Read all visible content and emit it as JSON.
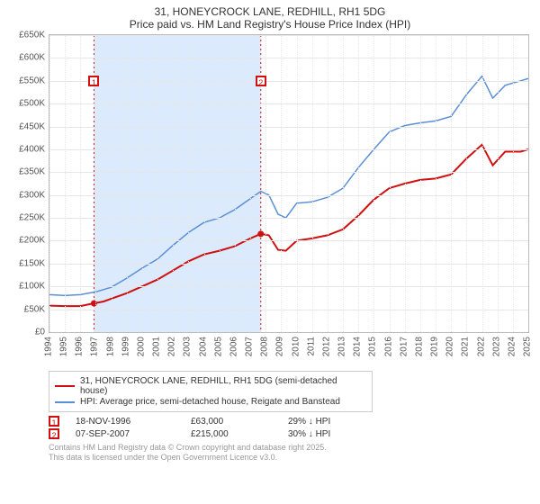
{
  "title_line1": "31, HONEYCROCK LANE, REDHILL, RH1 5DG",
  "title_line2": "Price paid vs. HM Land Registry's House Price Index (HPI)",
  "chart": {
    "type": "line",
    "background_color": "#ffffff",
    "grid_color": "#e6e6e6",
    "axis_color": "#bbbbbb",
    "shade_color": "#dbeafc",
    "x": {
      "years": [
        1994,
        1995,
        1996,
        1997,
        1998,
        1999,
        2000,
        2001,
        2002,
        2003,
        2004,
        2005,
        2006,
        2007,
        2008,
        2009,
        2010,
        2011,
        2012,
        2013,
        2014,
        2015,
        2016,
        2017,
        2018,
        2019,
        2020,
        2021,
        2022,
        2023,
        2024,
        2025
      ],
      "min": 1994,
      "max": 2025,
      "tick_fontsize": 10,
      "rotation": -90
    },
    "y": {
      "ticks": [
        0,
        50000,
        100000,
        150000,
        200000,
        250000,
        300000,
        350000,
        400000,
        450000,
        500000,
        550000,
        600000,
        650000
      ],
      "labels": [
        "£0",
        "£50K",
        "£100K",
        "£150K",
        "£200K",
        "£250K",
        "£300K",
        "£350K",
        "£400K",
        "£450K",
        "£500K",
        "£550K",
        "£600K",
        "£650K"
      ],
      "min": 0,
      "max": 650000,
      "tick_fontsize": 10
    },
    "series": [
      {
        "name": "price_paid",
        "legend": "31, HONEYCROCK LANE, REDHILL, RH1 5DG (semi-detached house)",
        "color": "#d01010",
        "line_width": 2,
        "points": [
          [
            1994.0,
            58000
          ],
          [
            1995.0,
            57000
          ],
          [
            1996.0,
            57000
          ],
          [
            1996.88,
            63000
          ],
          [
            1997.5,
            67000
          ],
          [
            1998.0,
            73000
          ],
          [
            1999.0,
            85000
          ],
          [
            2000.0,
            100000
          ],
          [
            2001.0,
            115000
          ],
          [
            2002.0,
            135000
          ],
          [
            2003.0,
            155000
          ],
          [
            2004.0,
            170000
          ],
          [
            2005.0,
            178000
          ],
          [
            2006.0,
            188000
          ],
          [
            2007.0,
            205000
          ],
          [
            2007.68,
            215000
          ],
          [
            2008.2,
            212000
          ],
          [
            2008.8,
            180000
          ],
          [
            2009.3,
            178000
          ],
          [
            2010.0,
            200000
          ],
          [
            2011.0,
            205000
          ],
          [
            2012.0,
            212000
          ],
          [
            2013.0,
            225000
          ],
          [
            2014.0,
            255000
          ],
          [
            2015.0,
            290000
          ],
          [
            2016.0,
            315000
          ],
          [
            2017.0,
            325000
          ],
          [
            2018.0,
            333000
          ],
          [
            2019.0,
            336000
          ],
          [
            2020.0,
            345000
          ],
          [
            2021.0,
            380000
          ],
          [
            2022.0,
            410000
          ],
          [
            2022.7,
            365000
          ],
          [
            2023.5,
            395000
          ],
          [
            2024.5,
            395000
          ],
          [
            2025.0,
            400000
          ]
        ]
      },
      {
        "name": "hpi",
        "legend": "HPI: Average price, semi-detached house, Reigate and Banstead",
        "color": "#5a8fd6",
        "line_width": 1.5,
        "points": [
          [
            1994.0,
            82000
          ],
          [
            1995.0,
            80000
          ],
          [
            1996.0,
            82000
          ],
          [
            1997.0,
            88000
          ],
          [
            1998.0,
            98000
          ],
          [
            1999.0,
            118000
          ],
          [
            2000.0,
            140000
          ],
          [
            2001.0,
            160000
          ],
          [
            2002.0,
            190000
          ],
          [
            2003.0,
            218000
          ],
          [
            2004.0,
            240000
          ],
          [
            2005.0,
            250000
          ],
          [
            2006.0,
            268000
          ],
          [
            2007.0,
            292000
          ],
          [
            2007.68,
            308000
          ],
          [
            2008.2,
            300000
          ],
          [
            2008.8,
            258000
          ],
          [
            2009.3,
            250000
          ],
          [
            2010.0,
            282000
          ],
          [
            2011.0,
            285000
          ],
          [
            2012.0,
            295000
          ],
          [
            2013.0,
            315000
          ],
          [
            2014.0,
            360000
          ],
          [
            2015.0,
            400000
          ],
          [
            2016.0,
            438000
          ],
          [
            2017.0,
            452000
          ],
          [
            2018.0,
            458000
          ],
          [
            2019.0,
            462000
          ],
          [
            2020.0,
            472000
          ],
          [
            2021.0,
            520000
          ],
          [
            2022.0,
            560000
          ],
          [
            2022.7,
            512000
          ],
          [
            2023.5,
            540000
          ],
          [
            2024.5,
            550000
          ],
          [
            2025.0,
            555000
          ]
        ]
      }
    ],
    "markers": [
      {
        "id": "1",
        "x": 1996.88,
        "y": 63000,
        "label_y": 550000
      },
      {
        "id": "2",
        "x": 2007.68,
        "y": 215000,
        "label_y": 550000
      }
    ],
    "shade_range": [
      1996.88,
      2007.68
    ]
  },
  "legend": {
    "row1_label": "31, HONEYCROCK LANE, REDHILL, RH1 5DG (semi-detached house)",
    "row2_label": "HPI: Average price, semi-detached house, Reigate and Banstead"
  },
  "events": [
    {
      "id": "1",
      "date": "18-NOV-1996",
      "price": "£63,000",
      "pct": "29% ↓ HPI"
    },
    {
      "id": "2",
      "date": "07-SEP-2007",
      "price": "£215,000",
      "pct": "30% ↓ HPI"
    }
  ],
  "footer_line1": "Contains HM Land Registry data © Crown copyright and database right 2025.",
  "footer_line2": "This data is licensed under the Open Government Licence v3.0."
}
